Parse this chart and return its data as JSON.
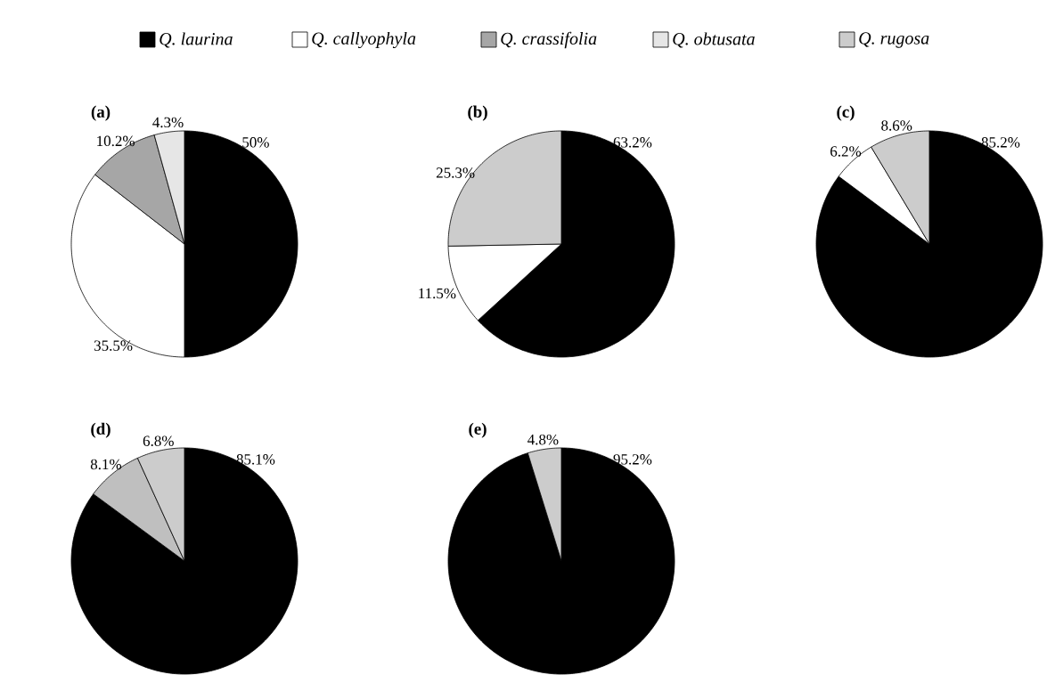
{
  "chart_data": [
    {
      "type": "pie",
      "title": "(a)",
      "legend": "top",
      "categories": [
        "Q. laurina",
        "Q. callyophyla",
        "Q. crassifolia",
        "Q. obtusata",
        "Q. rugosa"
      ],
      "values": [
        50,
        35.5,
        10.2,
        4.3,
        null
      ],
      "value_labels": [
        "50%",
        "35.5%",
        "10.2%",
        "4.3%",
        null
      ],
      "colors": [
        "#000000",
        "#ffffff",
        "#a6a6a6",
        "#e6e6e6",
        "#cccccc"
      ]
    },
    {
      "type": "pie",
      "title": "(b)",
      "categories": [
        null,
        null,
        null
      ],
      "values": [
        63.2,
        11.5,
        25.3
      ],
      "value_labels": [
        "63.2%",
        "11.5%",
        "25.3%"
      ],
      "colors": [
        "#000000",
        "#ffffff",
        "#cccccc"
      ]
    },
    {
      "type": "pie",
      "title": "(c)",
      "categories": [
        null,
        null,
        null
      ],
      "values": [
        85.2,
        6.2,
        8.6
      ],
      "value_labels": [
        "85.2%",
        "6.2%",
        "8.6%"
      ],
      "colors": [
        "#000000",
        "#ffffff",
        "#cccccc"
      ]
    },
    {
      "type": "pie",
      "title": "(d)",
      "categories": [
        null,
        null,
        null
      ],
      "values": [
        85.1,
        8.1,
        6.8
      ],
      "value_labels": [
        "85.1%",
        "8.1%",
        "6.8%"
      ],
      "colors": [
        "#000000",
        "#bfbfbf",
        "#cccccc"
      ]
    },
    {
      "type": "pie",
      "title": "(e)",
      "categories": [
        null,
        null
      ],
      "values": [
        95.2,
        4.8
      ],
      "value_labels": [
        "95.2%",
        "4.8%"
      ],
      "colors": [
        "#000000",
        "#cccccc"
      ]
    }
  ]
}
